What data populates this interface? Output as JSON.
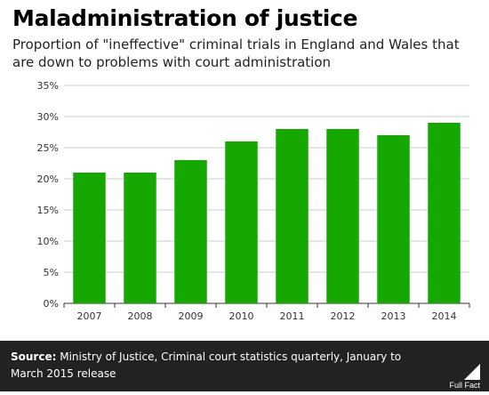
{
  "header": {
    "title": "Maladministration of justice",
    "subtitle": "Proportion of \"ineffective\" criminal trials in England and Wales that are down to problems with court administration"
  },
  "footer": {
    "source_label": "Source:",
    "source_text": "Ministry of Justice, Criminal court statistics quarterly, January to March 2015 release",
    "brand": "Full Fact"
  },
  "chart_data": {
    "type": "bar",
    "categories": [
      "2007",
      "2008",
      "2009",
      "2010",
      "2011",
      "2012",
      "2013",
      "2014"
    ],
    "values": [
      21,
      21,
      23,
      26,
      28,
      28,
      27,
      29
    ],
    "value_unit": "%",
    "ylim": [
      0,
      35
    ],
    "yticks": [
      "0%",
      "5%",
      "10%",
      "15%",
      "20%",
      "25%",
      "30%",
      "35%"
    ],
    "ytick_values": [
      0,
      5,
      10,
      15,
      20,
      25,
      30,
      35
    ],
    "grid": true,
    "bar_color": "#14a800",
    "xlabel": "",
    "ylabel": ""
  }
}
